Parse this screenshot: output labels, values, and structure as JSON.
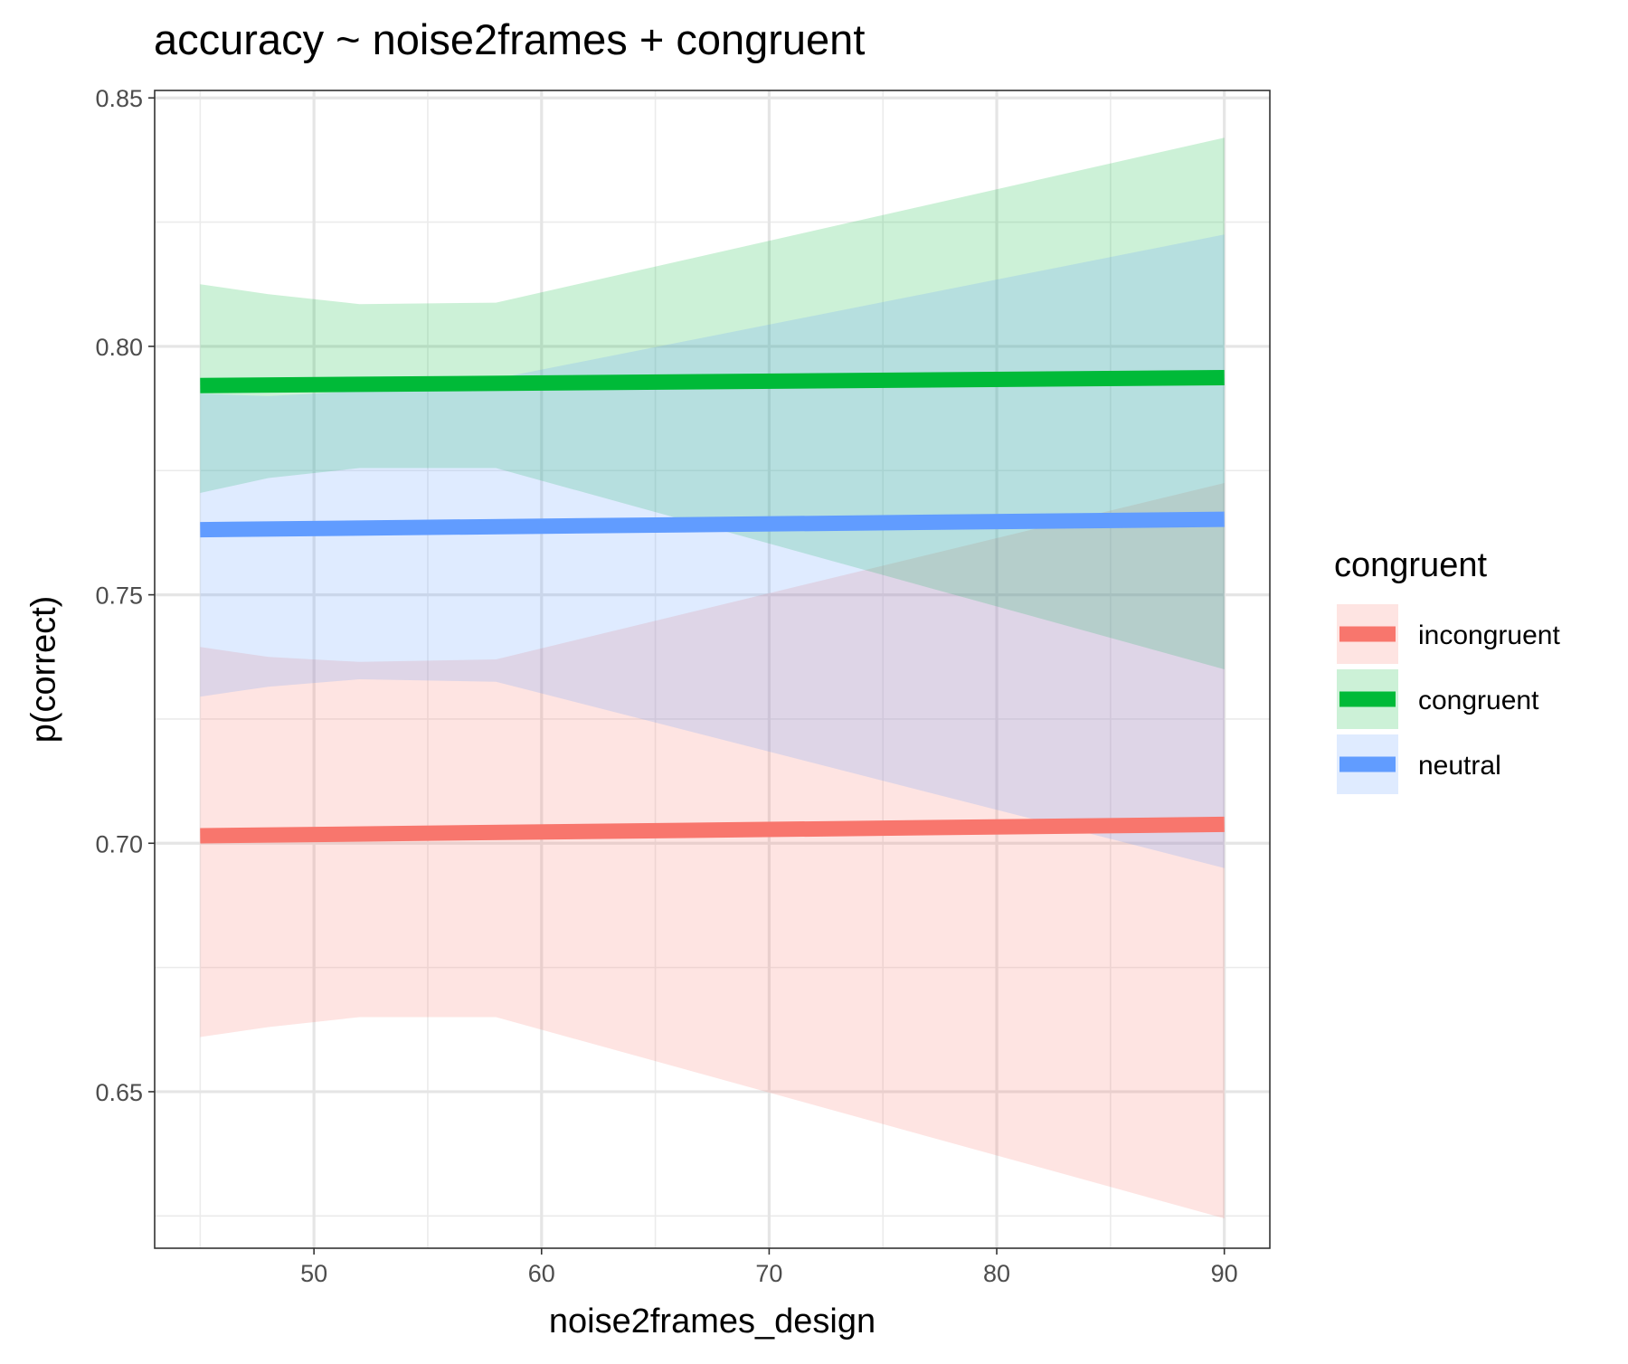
{
  "chart_data": {
    "type": "line",
    "title": "accuracy ~ noise2frames + congruent",
    "xlabel": "noise2frames_design",
    "ylabel": "p(correct)",
    "xlim": [
      43,
      92
    ],
    "ylim": [
      0.6185,
      0.8515
    ],
    "x_ticks": [
      50,
      60,
      70,
      80,
      90
    ],
    "x_tick_labels": [
      "50",
      "60",
      "70",
      "80",
      "90"
    ],
    "y_ticks": [
      0.65,
      0.7,
      0.75,
      0.8,
      0.85
    ],
    "y_tick_labels": [
      "0.65",
      "0.70",
      "0.75",
      "0.80",
      "0.85"
    ],
    "grid": true,
    "legend_title": "congruent",
    "legend_position": "right",
    "series": [
      {
        "name": "incongruent",
        "color": "#F8766D",
        "x": [
          45,
          90
        ],
        "y": [
          0.7015,
          0.7038
        ],
        "band_x": [
          45,
          48,
          52,
          58,
          90
        ],
        "band_lower": [
          0.661,
          0.663,
          0.665,
          0.665,
          0.6245
        ],
        "band_upper": [
          0.7395,
          0.7375,
          0.7365,
          0.737,
          0.7725
        ]
      },
      {
        "name": "congruent",
        "color": "#00BA38",
        "x": [
          45,
          90
        ],
        "y": [
          0.7921,
          0.7937
        ],
        "band_x": [
          45,
          48,
          52,
          58,
          90
        ],
        "band_lower": [
          0.7705,
          0.7735,
          0.7755,
          0.7755,
          0.735
        ],
        "band_upper": [
          0.8125,
          0.8105,
          0.8085,
          0.8088,
          0.842
        ]
      },
      {
        "name": "neutral",
        "color": "#619CFF",
        "x": [
          45,
          90
        ],
        "y": [
          0.7631,
          0.7652
        ],
        "band_x": [
          45,
          48,
          52,
          58,
          90
        ],
        "band_lower": [
          0.7295,
          0.7315,
          0.733,
          0.7325,
          0.695
        ],
        "band_upper": [
          0.7905,
          0.79,
          0.791,
          0.7935,
          0.8225
        ]
      }
    ]
  }
}
